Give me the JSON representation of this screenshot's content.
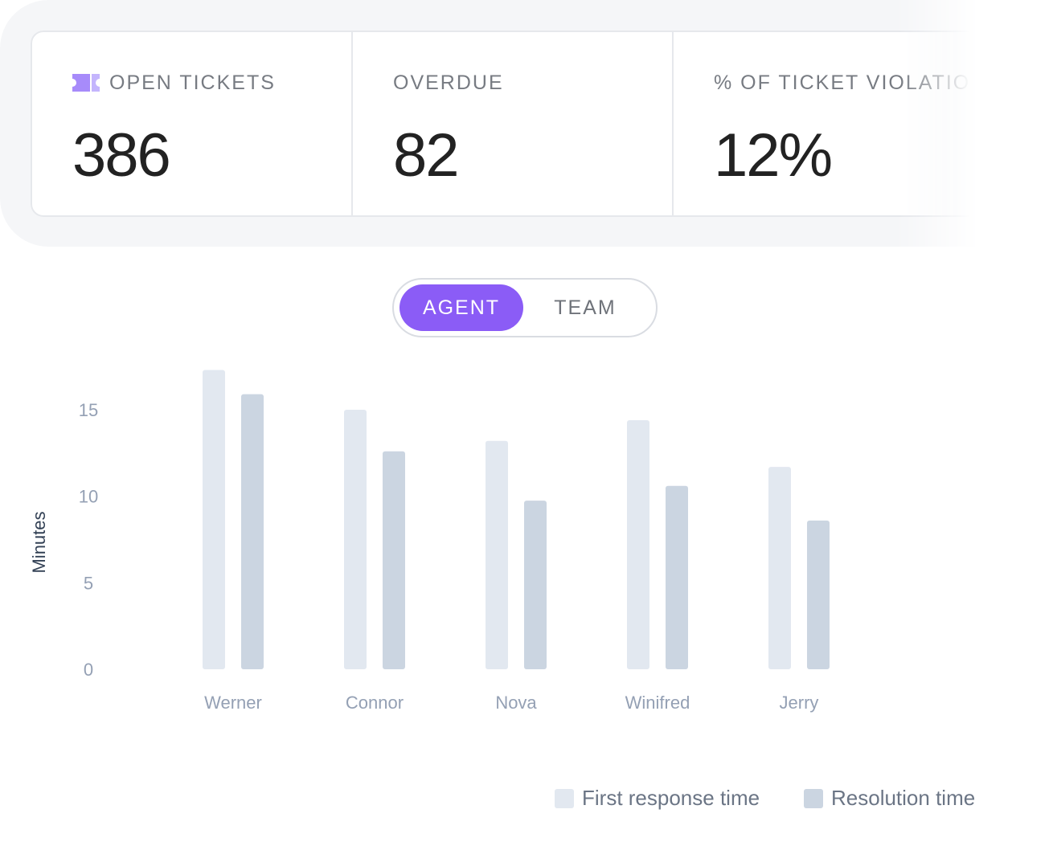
{
  "stats": [
    {
      "label": "OPEN TICKETS",
      "value": "386",
      "icon": "ticket-icon"
    },
    {
      "label": "OVERDUE",
      "value": "82"
    },
    {
      "label": "% OF TICKET VIOLATIONS",
      "value": "12%"
    }
  ],
  "toggle": {
    "options": [
      "AGENT",
      "TEAM"
    ],
    "selected": "AGENT"
  },
  "colors": {
    "accent": "#8b5cf6",
    "first_response": "#e2e8f0",
    "resolution": "#cbd5e1"
  },
  "chart_data": {
    "type": "bar",
    "categories": [
      "Werner",
      "Connor",
      "Nova",
      "Winifred",
      "Jerry"
    ],
    "series": [
      {
        "name": "First response time",
        "values": [
          17.3,
          15.0,
          13.2,
          14.4,
          11.7
        ]
      },
      {
        "name": "Resolution time",
        "values": [
          15.9,
          12.6,
          9.75,
          10.6,
          8.6
        ]
      }
    ],
    "ylabel": "Minutes",
    "yticks": [
      0,
      5,
      10,
      15
    ],
    "ylim": [
      0,
      17.5
    ],
    "grid": true,
    "legend": "bottom-right"
  }
}
